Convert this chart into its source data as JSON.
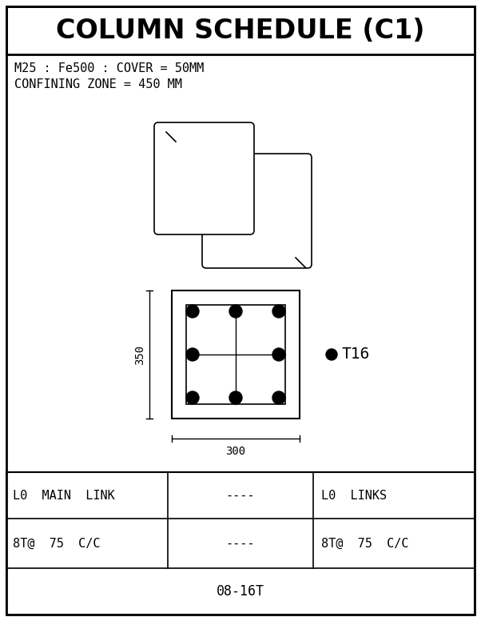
{
  "title": "COLUMN SCHEDULE (C1)",
  "subtitle_line1": "M25 : Fe500 : COVER = 50MM",
  "subtitle_line2": "CONFINING ZONE = 450 MM",
  "dim_width": "300",
  "dim_height": "350",
  "table_col1_row1": "L0  MAIN  LINK",
  "table_col2_row1": "----",
  "table_col3_row1": "L0  LINKS",
  "table_col1_row2": "8T@  75  C/C",
  "table_col2_row2": "----",
  "table_col3_row2": "8T@  75  C/C",
  "table_bottom": "08-16T",
  "bg_color": "#ffffff",
  "fg_color": "#000000",
  "border_color": "#000000",
  "title_fontsize": 24,
  "subtitle_fontsize": 11,
  "dim_fontsize": 10,
  "table_fontsize": 11
}
